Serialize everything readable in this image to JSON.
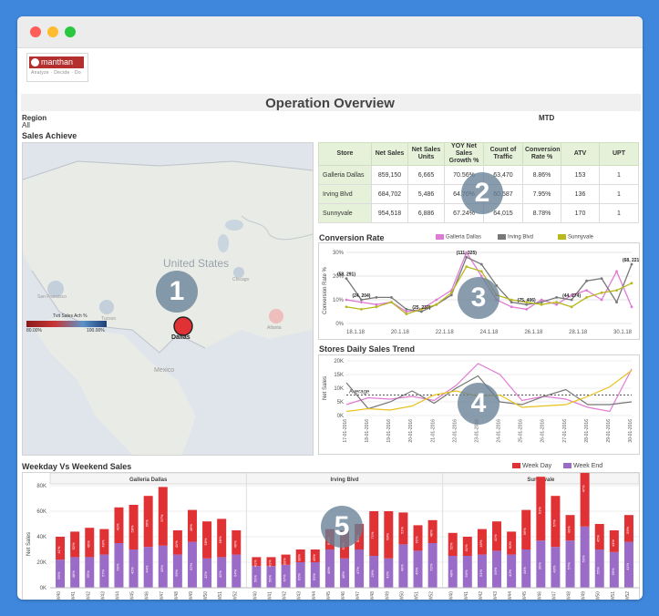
{
  "window": {
    "controls": [
      "close",
      "minimize",
      "maximize"
    ]
  },
  "logo": {
    "text": "manthan",
    "tagline": "Analyze · Decide · Do"
  },
  "title": "Operation Overview",
  "filters": {
    "region_label": "Region",
    "region_value": "All",
    "period": "MTD"
  },
  "sales_achieve": {
    "title": "Sales Achieve",
    "legend_title": "Tvit Sales Ach %",
    "legend_min": "80.00%",
    "legend_max": "100.00%",
    "map_labels": {
      "country": "United States",
      "sf": "San Francisco",
      "mexico": "Mexico",
      "chicago": "Chicago",
      "atlanta": "Atlanta",
      "tucson": "Tucson"
    },
    "marker_label": "Dallas",
    "badge": "1"
  },
  "kpi_table": {
    "headers": [
      "Store",
      "Net Sales",
      "Net Sales Units",
      "YOY Net Sales Growth %",
      "Count of Traffic",
      "Conversion Rate %",
      "ATV",
      "UPT"
    ],
    "rows": [
      [
        "Galleria Dallas",
        "859,150",
        "6,665",
        "70.56%",
        "63,470",
        "8.86%",
        "153",
        "1"
      ],
      [
        "Irving Blvd",
        "684,702",
        "5,486",
        "64.70%",
        "60,587",
        "7.95%",
        "136",
        "1"
      ],
      [
        "Sunnyvale",
        "954,518",
        "6,886",
        "67.24%",
        "64,015",
        "8.78%",
        "170",
        "1"
      ]
    ],
    "badge": "2"
  },
  "conversion": {
    "title": "Conversion Rate",
    "badge": "3",
    "chart_data": {
      "type": "line",
      "ylabel": "Conversion Rate %",
      "x": [
        "1",
        "2",
        "3",
        "4",
        "5",
        "6",
        "7",
        "8",
        "9",
        "10",
        "11",
        "12",
        "13",
        "14",
        "15",
        "16",
        "17",
        "18",
        "19",
        "20"
      ],
      "xtick_labels": [
        "18.1.18",
        "20.1.18",
        "22.1.18",
        "24.1.18",
        "26.1.18",
        "28.1.18",
        "30.1.18"
      ],
      "ylim": [
        0,
        30
      ],
      "yticks": [
        "0%",
        "10%",
        "20%",
        "30%"
      ],
      "series": [
        {
          "name": "Galleria Dallas",
          "color": "#e07bd5",
          "values": [
            10,
            9,
            8,
            9,
            5,
            6,
            10,
            14,
            30,
            20,
            10,
            7,
            6,
            10,
            8,
            12,
            14,
            10,
            22,
            7
          ]
        },
        {
          "name": "Irving Blvd",
          "color": "#777777",
          "values": [
            19,
            10,
            11,
            11,
            6,
            5,
            8,
            12,
            28,
            25,
            16,
            9,
            8,
            9,
            11,
            10,
            18,
            19,
            9,
            25
          ]
        },
        {
          "name": "Sunnyvale",
          "color": "#b7b81e",
          "values": [
            7,
            6,
            7,
            9,
            4,
            6,
            8,
            13,
            24,
            22,
            12,
            10,
            9,
            8,
            9,
            7,
            11,
            13,
            14,
            17
          ]
        }
      ],
      "annotations": [
        "(58, 291)",
        "(24, 204)",
        "(25, 237)",
        "(111, 325)",
        "(75, 406)",
        "(44, 274)",
        "(68, 221)"
      ]
    }
  },
  "daily_trend": {
    "title": "Stores Daily Sales Trend",
    "average_label": "Average",
    "badge": "4",
    "chart_data": {
      "type": "line",
      "ylabel": "Net Sales",
      "x": [
        "17-01-2016",
        "18-01-2016",
        "19-01-2016",
        "20-01-2016",
        "21-01-2016",
        "22-01-2016",
        "23-01-2016",
        "24-01-2016",
        "25-01-2016",
        "26-01-2016",
        "27-01-2016",
        "28-01-2016",
        "29-01-2016",
        "30-01-2016"
      ],
      "ylim": [
        0,
        20000
      ],
      "yticks": [
        "0K",
        "5K",
        "10K",
        "15K",
        "20K"
      ],
      "average": 7500,
      "series": [
        {
          "name": "Galleria Dallas",
          "color": "#e07bd5",
          "values": [
            4000,
            6500,
            6000,
            7000,
            5500,
            11000,
            19000,
            15000,
            5500,
            7000,
            6000,
            3000,
            1500,
            17000
          ]
        },
        {
          "name": "Irving Blvd",
          "color": "#777777",
          "values": [
            12000,
            2500,
            5000,
            9000,
            4500,
            10000,
            14500,
            5000,
            4000,
            7000,
            9500,
            4000,
            4000,
            5000
          ]
        },
        {
          "name": "Sunnyvale",
          "color": "#e8c21d",
          "values": [
            1500,
            2500,
            2000,
            3500,
            7500,
            9000,
            7000,
            7500,
            3000,
            3500,
            4000,
            7000,
            10500,
            16500
          ]
        }
      ]
    }
  },
  "weekday_weekend": {
    "title": "Weekday Vs Weekend Sales",
    "legend": [
      "Week Day",
      "Week End"
    ],
    "ylabel": "Net Sales",
    "badge": "5",
    "chart_data": {
      "type": "bar",
      "ylim": [
        0,
        80000
      ],
      "yticks": [
        "0K",
        "20K",
        "40K",
        "60K",
        "80K"
      ],
      "groups": [
        {
          "name": "Galleria Dallas",
          "categories": [
            "WW40",
            "WW41",
            "WW42",
            "WW43",
            "WW44",
            "WW45",
            "WW46",
            "WW47",
            "WW48",
            "WW49",
            "WW50",
            "WW51",
            "WW52"
          ],
          "weekday": [
            18000,
            20000,
            23000,
            20000,
            28000,
            35000,
            40000,
            46000,
            19000,
            25000,
            29000,
            30000,
            19000
          ],
          "weekend": [
            22000,
            24000,
            24000,
            26000,
            35000,
            30000,
            32000,
            33000,
            26000,
            36000,
            23000,
            24000,
            26000
          ],
          "weekday_pct": [
            "41%",
            "52%",
            "45%",
            "43%",
            "41%",
            "58%",
            "56%",
            "57%",
            "41%",
            "48%",
            "58%",
            "58%",
            "46%"
          ],
          "weekend_pct": [
            "59%",
            "48%",
            "55%",
            "57%",
            "59%",
            "42%",
            "44%",
            "43%",
            "59%",
            "52%",
            "42%",
            "42%",
            "54%"
          ]
        },
        {
          "name": "Irving Blvd",
          "categories": [
            "WW40",
            "WW41",
            "WW42",
            "WW43",
            "WW44",
            "WW45",
            "WW46",
            "WW47",
            "WW48",
            "WW49",
            "WW50",
            "WW51",
            "WW52"
          ],
          "weekday": [
            7000,
            7000,
            8000,
            10000,
            10000,
            16000,
            22000,
            20000,
            35000,
            37000,
            25000,
            20000,
            18000
          ],
          "weekend": [
            17000,
            17000,
            18000,
            20000,
            20000,
            30000,
            23000,
            30000,
            25000,
            23000,
            34000,
            29000,
            35000
          ],
          "weekday_pct": [
            "41%",
            "41%",
            "33%",
            "38%",
            "45%",
            "51%",
            "52%",
            "53%",
            "71%",
            "58%",
            "51%",
            "55%",
            "48%"
          ],
          "weekend_pct": [
            "59%",
            "59%",
            "67%",
            "62%",
            "55%",
            "49%",
            "48%",
            "47%",
            "29%",
            "42%",
            "49%",
            "45%",
            "52%"
          ]
        },
        {
          "name": "Sunnyvale",
          "categories": [
            "WW40",
            "WW41",
            "WW42",
            "WW43",
            "WW44",
            "WW45",
            "WW46",
            "WW47",
            "WW48",
            "WW49",
            "WW50",
            "WW51",
            "WW52"
          ],
          "weekday": [
            18000,
            15000,
            20000,
            23000,
            18000,
            31000,
            50000,
            40000,
            20000,
            62000,
            20000,
            17000,
            21000
          ],
          "weekend": [
            25000,
            25000,
            26000,
            29000,
            26000,
            30000,
            37000,
            32000,
            37000,
            48000,
            30000,
            28000,
            36000
          ],
          "weekday_pct": [
            "52%",
            "41%",
            "49%",
            "41%",
            "60%",
            "56%",
            "61%",
            "57%",
            "43%",
            "47%",
            "45%",
            "44%",
            "59%"
          ],
          "weekend_pct": [
            "48%",
            "59%",
            "51%",
            "59%",
            "40%",
            "44%",
            "39%",
            "43%",
            "57%",
            "53%",
            "55%",
            "56%",
            "41%"
          ]
        }
      ],
      "colors": {
        "weekday": "#e03135",
        "weekend": "#9b6bc8"
      }
    }
  }
}
